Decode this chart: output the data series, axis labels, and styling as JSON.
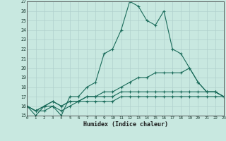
{
  "title": "",
  "xlabel": "Humidex (Indice chaleur)",
  "ylabel": "",
  "background_color": "#c8e8e0",
  "line_color": "#1a6b5a",
  "grid_color": "#b0d0cc",
  "ylim": [
    15,
    27
  ],
  "xlim": [
    0,
    23
  ],
  "yticks": [
    15,
    16,
    17,
    18,
    19,
    20,
    21,
    22,
    23,
    24,
    25,
    26,
    27
  ],
  "xticks": [
    0,
    1,
    2,
    3,
    4,
    5,
    6,
    7,
    8,
    9,
    10,
    11,
    12,
    13,
    14,
    15,
    16,
    17,
    18,
    19,
    20,
    21,
    22,
    23
  ],
  "series": [
    {
      "x": [
        0,
        1,
        2,
        3,
        4,
        5,
        6,
        7,
        8,
        9,
        10,
        11,
        12,
        13,
        14,
        15,
        16,
        17,
        18,
        19,
        20,
        21,
        22,
        23
      ],
      "y": [
        16,
        15,
        16,
        16,
        15,
        17,
        17,
        18,
        18.5,
        21.5,
        22,
        24,
        27,
        26.5,
        25,
        24.5,
        26,
        22,
        21.5,
        20,
        18.5,
        17.5,
        17.5,
        17
      ]
    },
    {
      "x": [
        0,
        1,
        2,
        3,
        4,
        5,
        6,
        7,
        8,
        9,
        10,
        11,
        12,
        13,
        14,
        15,
        16,
        17,
        18,
        19,
        20,
        21,
        22,
        23
      ],
      "y": [
        16,
        15.5,
        16,
        16.5,
        16,
        16.5,
        16.5,
        17,
        17,
        17.5,
        17.5,
        18,
        18.5,
        19,
        19,
        19.5,
        19.5,
        19.5,
        19.5,
        20,
        18.5,
        17.5,
        17.5,
        17
      ]
    },
    {
      "x": [
        0,
        1,
        2,
        3,
        4,
        5,
        6,
        7,
        8,
        9,
        10,
        11,
        12,
        13,
        14,
        15,
        16,
        17,
        18,
        19,
        20,
        21,
        22,
        23
      ],
      "y": [
        16,
        15.5,
        15.5,
        16,
        15.5,
        16,
        16.5,
        17,
        17,
        17,
        17,
        17.5,
        17.5,
        17.5,
        17.5,
        17.5,
        17.5,
        17.5,
        17.5,
        17.5,
        17.5,
        17.5,
        17.5,
        17
      ]
    },
    {
      "x": [
        0,
        1,
        2,
        3,
        4,
        5,
        6,
        7,
        8,
        9,
        10,
        11,
        12,
        13,
        14,
        15,
        16,
        17,
        18,
        19,
        20,
        21,
        22,
        23
      ],
      "y": [
        16,
        15.5,
        16,
        16.5,
        16,
        16.5,
        16.5,
        16.5,
        16.5,
        16.5,
        16.5,
        17,
        17,
        17,
        17,
        17,
        17,
        17,
        17,
        17,
        17,
        17,
        17,
        17
      ]
    }
  ]
}
